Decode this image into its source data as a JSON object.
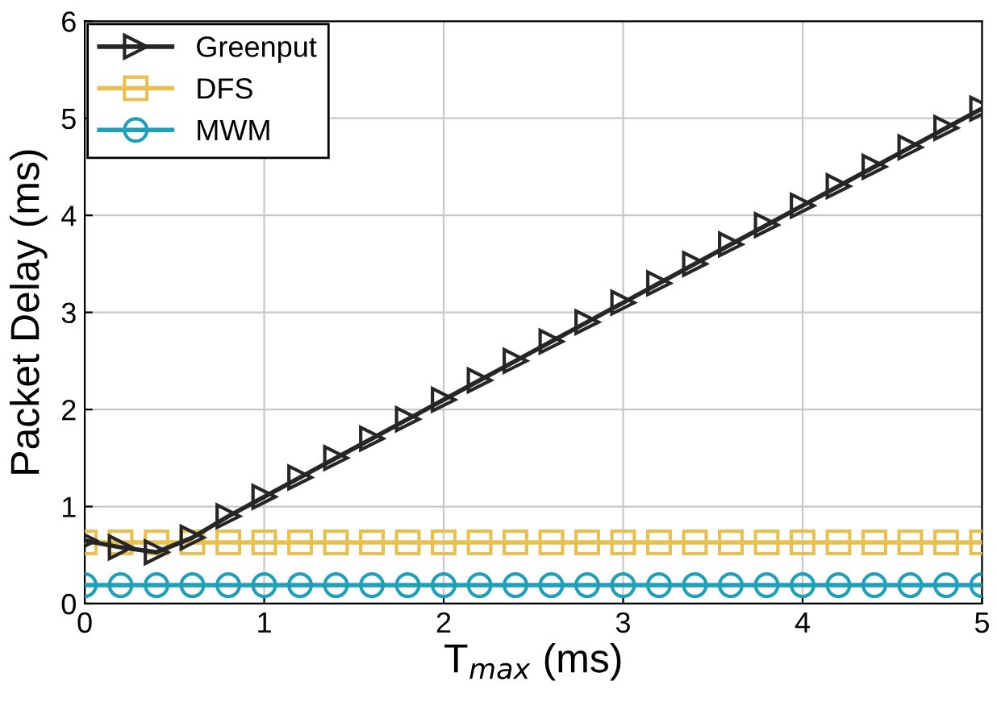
{
  "chart_data": {
    "type": "line",
    "xlabel": "T$_{max}$ (ms)",
    "ylabel": "Packet Delay (ms)",
    "x": [
      0,
      0.2,
      0.4,
      0.6,
      0.8,
      1.0,
      1.2,
      1.4,
      1.6,
      1.8,
      2.0,
      2.2,
      2.4,
      2.6,
      2.8,
      3.0,
      3.2,
      3.4,
      3.6,
      3.8,
      4.0,
      4.2,
      4.4,
      4.6,
      4.8,
      5.0
    ],
    "series": [
      {
        "name": "Greenput",
        "color": "#262626",
        "marker": "triangle",
        "values": [
          0.65,
          0.58,
          0.53,
          0.68,
          0.9,
          1.1,
          1.3,
          1.5,
          1.7,
          1.9,
          2.1,
          2.3,
          2.5,
          2.7,
          2.9,
          3.1,
          3.3,
          3.5,
          3.7,
          3.9,
          4.1,
          4.3,
          4.5,
          4.7,
          4.9,
          5.1
        ]
      },
      {
        "name": "DFS",
        "color": "#e8c050",
        "marker": "square",
        "values": [
          0.63,
          0.63,
          0.63,
          0.63,
          0.63,
          0.63,
          0.63,
          0.63,
          0.63,
          0.63,
          0.63,
          0.63,
          0.63,
          0.63,
          0.63,
          0.63,
          0.63,
          0.63,
          0.63,
          0.63,
          0.63,
          0.63,
          0.63,
          0.63,
          0.63,
          0.63
        ]
      },
      {
        "name": "MWM",
        "color": "#1fa0b8",
        "marker": "circle",
        "values": [
          0.19,
          0.19,
          0.19,
          0.19,
          0.19,
          0.19,
          0.19,
          0.19,
          0.19,
          0.19,
          0.19,
          0.19,
          0.19,
          0.19,
          0.19,
          0.19,
          0.19,
          0.19,
          0.19,
          0.19,
          0.19,
          0.19,
          0.19,
          0.19,
          0.19,
          0.19
        ]
      }
    ],
    "xlim": [
      0,
      5
    ],
    "ylim": [
      0,
      6
    ],
    "xticks": [
      0,
      1,
      2,
      3,
      4,
      5
    ],
    "yticks": [
      0,
      1,
      2,
      3,
      4,
      5,
      6
    ],
    "grid": true,
    "legend": "top left",
    "line_style": "solid"
  }
}
